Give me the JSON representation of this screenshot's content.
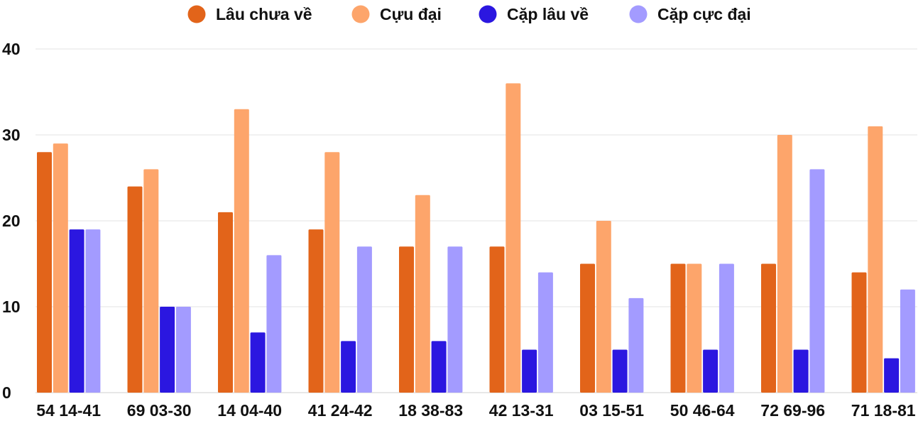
{
  "chart_data": {
    "type": "bar",
    "categories": [
      "54 14-41",
      "69 03-30",
      "14 04-40",
      "41 24-42",
      "18 38-83",
      "42 13-31",
      "03 15-51",
      "50 46-64",
      "72 69-96",
      "71 18-81"
    ],
    "series": [
      {
        "name": "Lâu chưa về",
        "color": "#e2641a",
        "values": [
          28,
          24,
          21,
          19,
          17,
          17,
          15,
          15,
          15,
          14
        ]
      },
      {
        "name": "Cựu đại",
        "color": "#fda56b",
        "values": [
          29,
          26,
          33,
          28,
          23,
          36,
          20,
          15,
          30,
          31
        ]
      },
      {
        "name": "Cặp lâu về",
        "color": "#2b17e0",
        "values": [
          19,
          10,
          7,
          6,
          6,
          5,
          5,
          5,
          5,
          4
        ]
      },
      {
        "name": "Cặp cực đại",
        "color": "#a39bff",
        "values": [
          19,
          10,
          16,
          17,
          17,
          14,
          11,
          15,
          26,
          12
        ]
      }
    ],
    "ylim": [
      0,
      40
    ],
    "yticks": [
      0,
      10,
      20,
      30,
      40
    ],
    "grid": true,
    "legend_position": "top-center",
    "title": "",
    "xlabel": "",
    "ylabel": ""
  }
}
